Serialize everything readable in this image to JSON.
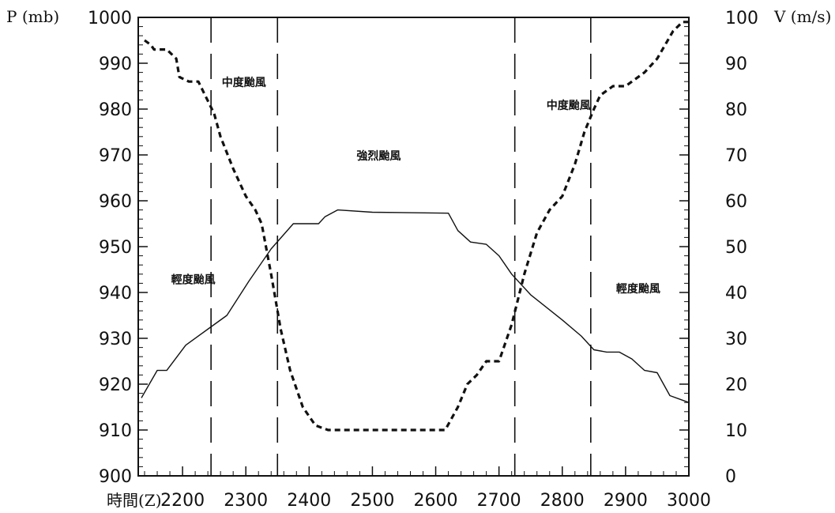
{
  "chart_data": {
    "type": "line",
    "left_axis": {
      "label": "P (mb)",
      "ylim": [
        900,
        1000
      ],
      "ticks": [
        "900",
        "910",
        "920",
        "930",
        "940",
        "950",
        "960",
        "970",
        "980",
        "990",
        "1000"
      ]
    },
    "right_axis": {
      "label": "V (m/s)",
      "ylim": [
        0,
        100
      ],
      "ticks": [
        "0",
        "10",
        "20",
        "30",
        "40",
        "50",
        "60",
        "70",
        "80",
        "90",
        "100"
      ]
    },
    "x_axis": {
      "label": "時間(Z)",
      "xlim": [
        2130,
        3000
      ],
      "ticks": [
        "2200",
        "2300",
        "2400",
        "2500",
        "2600",
        "2700",
        "2800",
        "2900",
        "3000"
      ]
    },
    "grid": false,
    "series": [
      {
        "style": "solid",
        "axis": "left",
        "x": [
          2135,
          2160,
          2175,
          2205,
          2245,
          2270,
          2305,
          2340,
          2375,
          2415,
          2425,
          2445,
          2500,
          2620,
          2635,
          2655,
          2680,
          2700,
          2720,
          2750,
          2800,
          2830,
          2850,
          2870,
          2890,
          2910,
          2930,
          2950,
          2970,
          2990,
          3000
        ],
        "y": [
          917,
          923,
          923,
          928.5,
          932.5,
          935,
          942.5,
          949.5,
          955,
          955,
          956.5,
          958,
          957.5,
          957.3,
          953.5,
          951,
          950.5,
          948,
          944,
          939.5,
          934,
          930.5,
          927.5,
          927,
          927,
          925.5,
          923,
          922.5,
          917.5,
          916.5,
          916
        ]
      },
      {
        "style": "dashed",
        "axis": "right",
        "x": [
          2140,
          2150,
          2155,
          2170,
          2175,
          2190,
          2195,
          2210,
          2225,
          2250,
          2260,
          2280,
          2300,
          2315,
          2325,
          2340,
          2355,
          2370,
          2390,
          2410,
          2430,
          2490,
          2560,
          2600,
          2615,
          2635,
          2650,
          2665,
          2680,
          2700,
          2720,
          2740,
          2760,
          2780,
          2800,
          2820,
          2835,
          2850,
          2860,
          2880,
          2900,
          2910,
          2930,
          2950,
          2975,
          2990,
          3005
        ],
        "y": [
          95,
          94,
          93,
          93,
          93,
          91,
          87,
          86,
          86,
          79,
          74,
          67,
          61,
          58,
          55,
          44,
          32,
          23,
          15,
          11,
          10,
          10,
          10,
          10,
          10,
          15,
          20,
          22,
          25,
          25,
          33,
          44,
          53,
          58,
          61,
          68,
          75,
          80,
          83,
          85,
          85,
          86,
          88,
          91,
          97,
          99,
          99
        ]
      }
    ],
    "vertical_lines_x": [
      2245,
      2350,
      2725,
      2845,
      3000
    ],
    "annotations": [
      {
        "text": "中度颱風",
        "x": 2262,
        "y": 985
      },
      {
        "text": "強烈颱風",
        "x": 2475,
        "y": 969
      },
      {
        "text": "中度颱風",
        "x": 2775,
        "y": 980
      },
      {
        "text": "輕度颱風",
        "x": 2182,
        "y": 942
      },
      {
        "text": "輕度颱風",
        "x": 2885,
        "y": 940
      }
    ]
  }
}
